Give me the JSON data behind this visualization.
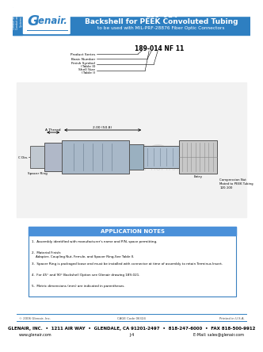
{
  "title_number": "189-014",
  "title_main": "Backshell for PEEK Convoluted Tubing",
  "title_sub": "to be used with MIL-PRF-28876 Fiber Optic Connectors",
  "header_bg": "#2e7fc1",
  "sidebar_bg": "#2e7fc1",
  "part_number_label": "189-014 NF 11",
  "part_labels": [
    "Product Series",
    "Basic Number",
    "Finish Symbol\n(Table II)",
    "Shell Size\n(Table I)"
  ],
  "app_notes_title": "APPLICATION NOTES",
  "app_notes_bg": "#4a90d9",
  "app_notes": [
    "1.  Assembly identified with manufacturer's name and P/N, space permitting.",
    "2.  Material Finish:\n    Adapter, Coupling Nut, Ferrule, and Spacer Ring-See Table II.",
    "3.  Spacer Ring is packaged loose and must be installed with connector at time of assembly to retain Terminus Insert.",
    "4.  For 45° and 90° Backshell Option see Glenair drawing 189-021.",
    "5.  Metric dimensions (mm) are indicated in parentheses."
  ],
  "footer_copy": "© 2006 Glenair, Inc.",
  "footer_cage": "CAGE Code 06324",
  "footer_printed": "Printed in U.S.A.",
  "footer_address": "GLENAIR, INC.  •  1211 AIR WAY  •  GLENDALE, CA 91201-2497  •  818-247-6000  •  FAX 818-500-9912",
  "footer_web": "www.glenair.com",
  "footer_doc": "J-4",
  "footer_email": "E-Mail: sales@glenair.com",
  "comp_note": "Compression Nut\nMated to PEEK Tubing\n120-100",
  "spacer_ring_label": "Spacer Ring",
  "a_thread_label": "A Thread",
  "dim_label": "2.00 (50.8)",
  "c_dia_label": "C Dia.",
  "entry_label": "Entry"
}
